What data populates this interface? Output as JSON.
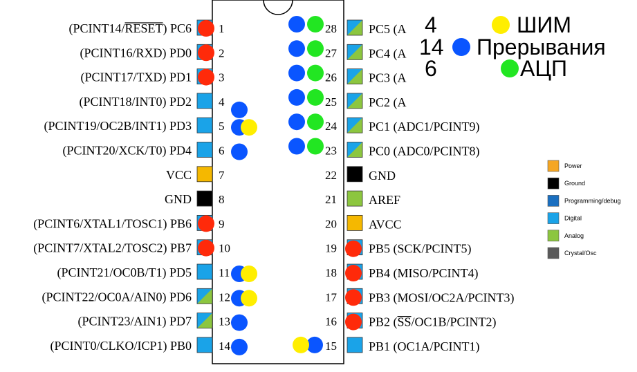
{
  "colors": {
    "power": "#f5a623",
    "ground": "#000000",
    "programming": "#1a6fc0",
    "digital": "#1aa3e8",
    "analog": "#8cc63f",
    "crystal": "#595959",
    "vcc": "#f5b800",
    "dot_red": "#ff2a0a",
    "dot_blue": "#0a55ff",
    "dot_green": "#22e622",
    "dot_yellow": "#ffee00"
  },
  "left_pins": [
    {
      "num": "1",
      "label": "(PCINT14/RESET) PC6",
      "over": "RESET",
      "type": "digital",
      "dots": [
        "red"
      ]
    },
    {
      "num": "2",
      "label": "(PCINT16/RXD) PD0",
      "over": "",
      "type": "digital",
      "dots": [
        "red"
      ]
    },
    {
      "num": "3",
      "label": "(PCINT17/TXD) PD1",
      "over": "",
      "type": "digital",
      "dots": [
        "red"
      ]
    },
    {
      "num": "4",
      "label": "(PCINT18/INT0) PD2",
      "over": "",
      "type": "digital",
      "dots": [
        "blue"
      ]
    },
    {
      "num": "5",
      "label": "(PCINT19/OC2B/INT1) PD3",
      "over": "",
      "type": "digital",
      "dots": [
        "blue",
        "yellow"
      ]
    },
    {
      "num": "6",
      "label": "(PCINT20/XCK/T0) PD4",
      "over": "",
      "type": "digital",
      "dots": [
        "blue"
      ]
    },
    {
      "num": "7",
      "label": "VCC",
      "over": "",
      "type": "vcc",
      "dots": []
    },
    {
      "num": "8",
      "label": "GND",
      "over": "",
      "type": "ground",
      "dots": []
    },
    {
      "num": "9",
      "label": "(PCINT6/XTAL1/TOSC1) PB6",
      "over": "",
      "type": "digital",
      "dots": [
        "red"
      ]
    },
    {
      "num": "10",
      "label": "(PCINT7/XTAL2/TOSC2) PB7",
      "over": "",
      "type": "digital",
      "dots": [
        "red"
      ]
    },
    {
      "num": "11",
      "label": "(PCINT21/OC0B/T1) PD5",
      "over": "",
      "type": "digital",
      "dots": [
        "blue",
        "yellow"
      ]
    },
    {
      "num": "12",
      "label": "(PCINT22/OC0A/AIN0) PD6",
      "over": "",
      "type": "digital-analog",
      "dots": [
        "blue",
        "yellow"
      ]
    },
    {
      "num": "13",
      "label": "(PCINT23/AIN1) PD7",
      "over": "",
      "type": "digital-analog",
      "dots": [
        "blue"
      ]
    },
    {
      "num": "14",
      "label": "(PCINT0/CLKO/ICP1) PB0",
      "over": "",
      "type": "digital",
      "dots": [
        "blue"
      ]
    }
  ],
  "right_pins": [
    {
      "num": "28",
      "label": "PC5 (A",
      "over": "",
      "type": "digital-analog",
      "dots": [
        "blue",
        "green"
      ]
    },
    {
      "num": "27",
      "label": "PC4 (A",
      "over": "",
      "type": "digital-analog",
      "dots": [
        "blue",
        "green"
      ]
    },
    {
      "num": "26",
      "label": "PC3 (A",
      "over": "",
      "type": "digital-analog",
      "dots": [
        "blue",
        "green"
      ]
    },
    {
      "num": "25",
      "label": "PC2 (A",
      "over": "",
      "type": "digital-analog",
      "dots": [
        "blue",
        "green"
      ]
    },
    {
      "num": "24",
      "label": "PC1 (ADC1/PCINT9)",
      "over": "",
      "type": "digital-analog",
      "dots": [
        "blue",
        "green"
      ]
    },
    {
      "num": "23",
      "label": "PC0 (ADC0/PCINT8)",
      "over": "",
      "type": "digital-analog",
      "dots": [
        "blue",
        "green"
      ]
    },
    {
      "num": "22",
      "label": "GND",
      "over": "",
      "type": "ground",
      "dots": []
    },
    {
      "num": "21",
      "label": "AREF",
      "over": "",
      "type": "analog",
      "dots": []
    },
    {
      "num": "20",
      "label": "AVCC",
      "over": "",
      "type": "vcc",
      "dots": []
    },
    {
      "num": "19",
      "label": "PB5 (SCK/PCINT5)",
      "over": "",
      "type": "digital",
      "dots": [
        "red"
      ]
    },
    {
      "num": "18",
      "label": "PB4 (MISO/PCINT4)",
      "over": "",
      "type": "digital",
      "dots": [
        "red"
      ]
    },
    {
      "num": "17",
      "label": "PB3 (MOSI/OC2A/PCINT3)",
      "over": "",
      "type": "digital",
      "dots": [
        "red"
      ]
    },
    {
      "num": "16",
      "label": "PB2 (SS/OC1B/PCINT2)",
      "over": "SS",
      "type": "digital",
      "dots": [
        "red"
      ]
    },
    {
      "num": "15",
      "label": "PB1 (OC1A/PCINT1)",
      "over": "",
      "type": "digital",
      "dots": [
        "yellow",
        "blue"
      ]
    }
  ],
  "summary": [
    {
      "count": "4",
      "label": "ШИМ",
      "color": "yellow",
      "dot_side": "left"
    },
    {
      "count": "14",
      "label": "Прерывания",
      "color": "blue",
      "dot_side": "left"
    },
    {
      "count": "6",
      "label": "АЦП",
      "color": "green",
      "dot_side": "left"
    }
  ],
  "legend": [
    {
      "label": "Power",
      "color": "#f5a623"
    },
    {
      "label": "Ground",
      "color": "#000000"
    },
    {
      "label": "Programming/debug",
      "color": "#1a6fc0"
    },
    {
      "label": "Digital",
      "color": "#1aa3e8"
    },
    {
      "label": "Analog",
      "color": "#8cc63f"
    },
    {
      "label": "Crystal/Osc",
      "color": "#595959"
    }
  ]
}
